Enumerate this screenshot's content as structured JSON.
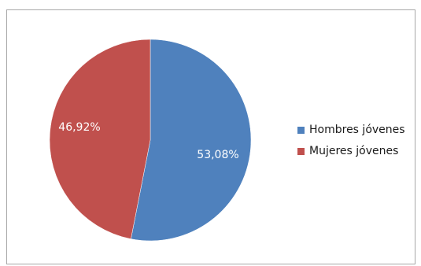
{
  "chart_data": {
    "type": "pie",
    "title": "",
    "categories": [
      "Hombres jóvenes",
      "Mujeres jóvenes"
    ],
    "values": [
      53.08,
      46.92
    ],
    "data_labels": [
      "53,08%",
      "46,92%"
    ],
    "colors": [
      "#4f81bd",
      "#c0504d"
    ],
    "legend_position": "right",
    "start_angle": "top, clockwise"
  }
}
